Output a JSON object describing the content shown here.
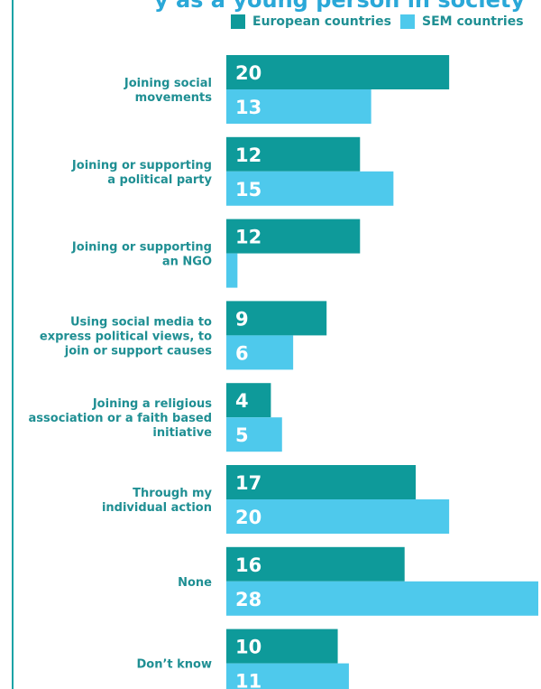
{
  "title_fragment": "y as a young person in society",
  "colors": {
    "european": "#0e9a9a",
    "sem": "#4ec9ec",
    "text": "#1f8f93",
    "title": "#2aa8d8",
    "axis": "#1aa3a6"
  },
  "chart_data": {
    "type": "bar",
    "orientation": "horizontal",
    "categories": [
      [
        "Joining social",
        "movements"
      ],
      [
        "Joining or supporting",
        "a political party"
      ],
      [
        "Joining or supporting",
        "an NGO"
      ],
      [
        "Using social media to",
        "express political views, to",
        "join or support causes"
      ],
      [
        "Joining a religious",
        "association or a faith based",
        "initiative"
      ],
      [
        "Through my",
        "individual action"
      ],
      [
        "None"
      ],
      [
        "Don’t know"
      ]
    ],
    "series": [
      {
        "name": "European countries",
        "values": [
          20,
          12,
          12,
          9,
          4,
          17,
          16,
          10
        ],
        "labels": [
          "20",
          "12",
          "12",
          "9",
          "4",
          "17",
          "16",
          "10"
        ]
      },
      {
        "name": "SEM countries",
        "values": [
          13,
          15,
          1,
          6,
          5,
          20,
          28,
          11
        ],
        "labels": [
          "13",
          "15",
          "",
          "6",
          "5",
          "20",
          "28",
          "11"
        ]
      }
    ],
    "xlim": [
      0,
      28
    ],
    "legend_position": "top-right",
    "grid": false
  }
}
